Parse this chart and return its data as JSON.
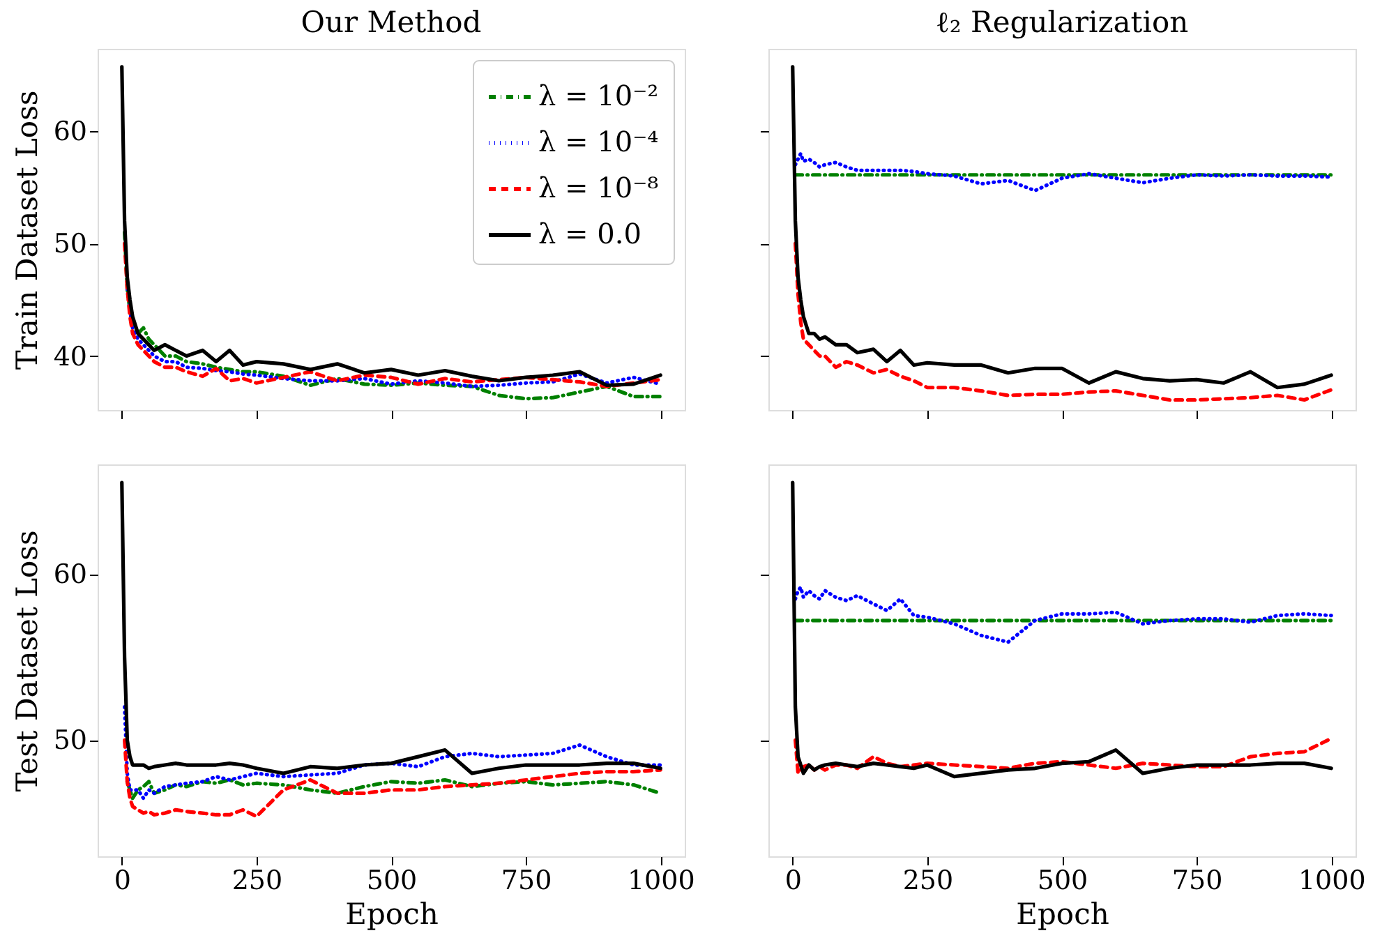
{
  "chart_data": [
    {
      "type": "line",
      "title": "Our Method",
      "ylabel": "Train Dataset Loss",
      "legend": "top right",
      "tick_labels": "y",
      "grid": false,
      "x": [
        0,
        5,
        10,
        15,
        20,
        30,
        40,
        50,
        60,
        80,
        100,
        120,
        150,
        175,
        200,
        225,
        250,
        300,
        350,
        400,
        450,
        500,
        550,
        600,
        650,
        700,
        750,
        800,
        850,
        900,
        950,
        1000
      ],
      "xlim": [
        -45,
        1045
      ],
      "xticks": [
        0,
        250,
        500,
        750,
        1000
      ],
      "ylim": [
        35.2,
        67.3
      ],
      "yticks": [
        40,
        50,
        60
      ],
      "series": [
        {
          "name": "λ = 10⁻²",
          "color": "#008000",
          "line_style": "dashdot",
          "values": [
            null,
            51,
            46,
            44,
            43,
            42,
            42.5,
            41.5,
            41,
            40,
            40,
            39.5,
            39.3,
            39,
            38.8,
            38.6,
            38.6,
            38.2,
            37.4,
            38,
            37.5,
            37.4,
            37.6,
            37.4,
            37.3,
            36.5,
            36.2,
            36.3,
            36.8,
            37.3,
            36.4,
            36.4
          ]
        },
        {
          "name": "λ = 10⁻⁴",
          "color": "#0000ff",
          "line_style": "dotted",
          "values": [
            null,
            null,
            46,
            44,
            42.5,
            41.5,
            41,
            40.5,
            40,
            39.5,
            39.5,
            39,
            38.9,
            38.7,
            38.6,
            38.4,
            38.3,
            38,
            37.8,
            37.8,
            38,
            37.5,
            37.8,
            37.6,
            37.3,
            37.4,
            37.6,
            37.7,
            38.4,
            37.6,
            38.1,
            37.5
          ]
        },
        {
          "name": "λ = 10⁻⁸",
          "color": "#ff0000",
          "line_style": "dashed",
          "values": [
            null,
            50,
            46,
            43.5,
            42,
            41,
            40.5,
            40,
            39.5,
            39,
            39,
            38.6,
            38.2,
            38.9,
            37.8,
            38,
            37.6,
            38.1,
            38.6,
            37.8,
            38.3,
            38.1,
            37.5,
            38,
            37.7,
            37.9,
            38.1,
            37.9,
            37.7,
            37.3,
            37.6,
            37.9
          ]
        },
        {
          "name": "λ = 0.0",
          "color": "#000000",
          "line_style": "solid",
          "values": [
            65.7,
            52,
            47,
            45,
            43.5,
            42,
            41.5,
            41,
            40.5,
            41,
            40.5,
            40,
            40.5,
            39.5,
            40.5,
            39.2,
            39.5,
            39.3,
            38.8,
            39.3,
            38.5,
            38.8,
            38.3,
            38.7,
            38.2,
            37.8,
            38.1,
            38.3,
            38.6,
            37.4,
            37.5,
            38.3
          ]
        }
      ]
    },
    {
      "type": "line",
      "title": "ℓ₂ Regularization",
      "tick_labels": false,
      "grid": false,
      "x": [
        0,
        5,
        10,
        15,
        20,
        30,
        40,
        50,
        60,
        80,
        100,
        120,
        150,
        175,
        200,
        225,
        250,
        300,
        350,
        400,
        450,
        500,
        550,
        600,
        650,
        700,
        750,
        800,
        850,
        900,
        950,
        1000
      ],
      "xlim": [
        -45,
        1045
      ],
      "xticks": [
        0,
        250,
        500,
        750,
        1000
      ],
      "ylim": [
        35.2,
        67.3
      ],
      "yticks": [
        40,
        50,
        60
      ],
      "series": [
        {
          "color": "#008000",
          "line_style": "dashdot",
          "values": [
            null,
            56.1,
            56.1,
            56.1,
            56.1,
            56.1,
            56.1,
            56.1,
            56.1,
            56.1,
            56.1,
            56.1,
            56.1,
            56.1,
            56.1,
            56.1,
            56.1,
            56.1,
            56.1,
            56.1,
            56.1,
            56.1,
            56.1,
            56.1,
            56.1,
            56.1,
            56.1,
            56.1,
            56.1,
            56.1,
            56.1,
            56.1
          ]
        },
        {
          "color": "#0000ff",
          "line_style": "dotted",
          "values": [
            null,
            57,
            57.5,
            58,
            57.3,
            57.5,
            57.2,
            56.8,
            57,
            57.2,
            56.8,
            56.5,
            56.5,
            56.5,
            56.5,
            56.4,
            56.2,
            56,
            55.3,
            55.6,
            54.7,
            55.8,
            56.2,
            55.8,
            55.4,
            55.8,
            56.1,
            56,
            56.1,
            56,
            56,
            55.9
          ]
        },
        {
          "color": "#ff0000",
          "line_style": "dashed",
          "values": [
            null,
            50,
            45.5,
            43,
            41.5,
            41,
            40.5,
            40,
            40,
            39,
            39.5,
            39.2,
            38.5,
            38.8,
            38.2,
            37.8,
            37.2,
            37.2,
            36.9,
            36.5,
            36.6,
            36.6,
            36.8,
            36.9,
            36.5,
            36.1,
            36.1,
            36.2,
            36.3,
            36.5,
            36.1,
            37
          ]
        },
        {
          "color": "#000000",
          "line_style": "solid",
          "values": [
            65.7,
            52,
            47,
            45,
            43.5,
            42,
            42,
            41.5,
            41.7,
            41,
            41,
            40.3,
            40.6,
            39.5,
            40.5,
            39.2,
            39.4,
            39.2,
            39.2,
            38.5,
            38.9,
            38.9,
            37.6,
            38.6,
            38,
            37.8,
            37.9,
            37.6,
            38.6,
            37.2,
            37.5,
            38.3
          ]
        }
      ]
    },
    {
      "type": "line",
      "ylabel": "Test Dataset Loss",
      "xlabel": "Epoch",
      "grid": false,
      "x": [
        0,
        5,
        10,
        15,
        20,
        30,
        40,
        50,
        60,
        80,
        100,
        120,
        150,
        175,
        200,
        225,
        250,
        300,
        350,
        400,
        450,
        500,
        550,
        600,
        650,
        700,
        750,
        800,
        850,
        900,
        950,
        1000
      ],
      "xlim": [
        -45,
        1045
      ],
      "xticks": [
        0,
        250,
        500,
        750,
        1000
      ],
      "ylim": [
        43,
        66.6
      ],
      "yticks": [
        50,
        60
      ],
      "series": [
        {
          "color": "#008000",
          "line_style": "dashdot",
          "values": [
            null,
            null,
            47.5,
            47,
            46.5,
            47,
            47.2,
            47.5,
            46.8,
            47,
            47.3,
            47.2,
            47.5,
            47.4,
            47.6,
            47.3,
            47.4,
            47.3,
            47,
            46.8,
            47.2,
            47.5,
            47.4,
            47.6,
            47.2,
            47.4,
            47.5,
            47.3,
            47.4,
            47.5,
            47.3,
            46.8
          ]
        },
        {
          "color": "#0000ff",
          "line_style": "dotted",
          "values": [
            null,
            52,
            48,
            47,
            47,
            47,
            46.5,
            47,
            46.8,
            47.2,
            47.3,
            47.4,
            47.5,
            47.8,
            47.6,
            47.8,
            48,
            47.8,
            47.9,
            48,
            48.5,
            48.6,
            48.4,
            49,
            49.2,
            49,
            49.1,
            49.2,
            49.7,
            49,
            48.5,
            48.5
          ]
        },
        {
          "color": "#ff0000",
          "line_style": "dashed",
          "values": [
            null,
            50,
            47.5,
            46.5,
            46,
            45.8,
            45.6,
            45.7,
            45.5,
            45.6,
            45.8,
            45.7,
            45.6,
            45.5,
            45.5,
            45.8,
            45.4,
            47,
            47.6,
            46.8,
            46.8,
            47,
            47,
            47.2,
            47.3,
            47.4,
            47.6,
            47.8,
            48,
            48.1,
            48.1,
            48.2
          ]
        },
        {
          "color": "#000000",
          "line_style": "solid",
          "values": [
            65.5,
            55,
            50,
            49,
            48.5,
            48.5,
            48.5,
            48.3,
            48.4,
            48.5,
            48.6,
            48.5,
            48.5,
            48.5,
            48.6,
            48.5,
            48.3,
            48,
            48.4,
            48.3,
            48.5,
            48.6,
            49,
            49.4,
            48,
            48.3,
            48.5,
            48.5,
            48.5,
            48.6,
            48.6,
            48.3
          ]
        }
      ]
    },
    {
      "type": "line",
      "xlabel": "Epoch",
      "tick_labels": "x",
      "grid": false,
      "x": [
        0,
        5,
        10,
        15,
        20,
        30,
        40,
        50,
        60,
        80,
        100,
        120,
        150,
        175,
        200,
        225,
        250,
        300,
        350,
        400,
        450,
        500,
        550,
        600,
        650,
        700,
        750,
        800,
        850,
        900,
        950,
        1000
      ],
      "xlim": [
        -45,
        1045
      ],
      "xticks": [
        0,
        250,
        500,
        750,
        1000
      ],
      "ylim": [
        43,
        66.6
      ],
      "yticks": [
        50,
        60
      ],
      "series": [
        {
          "color": "#008000",
          "line_style": "dashdot",
          "values": [
            null,
            57.2,
            57.2,
            57.2,
            57.2,
            57.2,
            57.2,
            57.2,
            57.2,
            57.2,
            57.2,
            57.2,
            57.2,
            57.2,
            57.2,
            57.2,
            57.2,
            57.2,
            57.2,
            57.2,
            57.2,
            57.2,
            57.2,
            57.2,
            57.2,
            57.2,
            57.2,
            57.2,
            57.2,
            57.2,
            57.2,
            57.2
          ]
        },
        {
          "color": "#0000ff",
          "line_style": "dotted",
          "values": [
            null,
            58.5,
            59,
            59.2,
            58.6,
            59,
            58.7,
            58.5,
            59,
            58.6,
            58.4,
            58.7,
            58.2,
            57.8,
            58.5,
            57.5,
            57.4,
            57,
            56.3,
            55.9,
            57.2,
            57.6,
            57.6,
            57.7,
            57,
            57.2,
            57.3,
            57.3,
            57.1,
            57.5,
            57.6,
            57.5
          ]
        },
        {
          "color": "#ff0000",
          "line_style": "dashed",
          "values": [
            null,
            50,
            48,
            48.2,
            48.4,
            48.5,
            48.2,
            48.4,
            48.2,
            48.5,
            48.5,
            48.3,
            49,
            48.6,
            48.4,
            48.5,
            48.6,
            48.5,
            48.4,
            48.3,
            48.6,
            48.7,
            48.5,
            48.3,
            48.6,
            48.5,
            48.4,
            48.4,
            49,
            49.2,
            49.3,
            50.1
          ]
        },
        {
          "color": "#000000",
          "line_style": "solid",
          "values": [
            65.5,
            52,
            49,
            48.5,
            48,
            48.5,
            48.2,
            48.4,
            48.5,
            48.6,
            48.5,
            48.4,
            48.6,
            48.5,
            48.4,
            48.3,
            48.5,
            47.8,
            48,
            48.2,
            48.3,
            48.6,
            48.7,
            49.4,
            48,
            48.3,
            48.5,
            48.5,
            48.5,
            48.6,
            48.6,
            48.3
          ]
        }
      ]
    }
  ]
}
